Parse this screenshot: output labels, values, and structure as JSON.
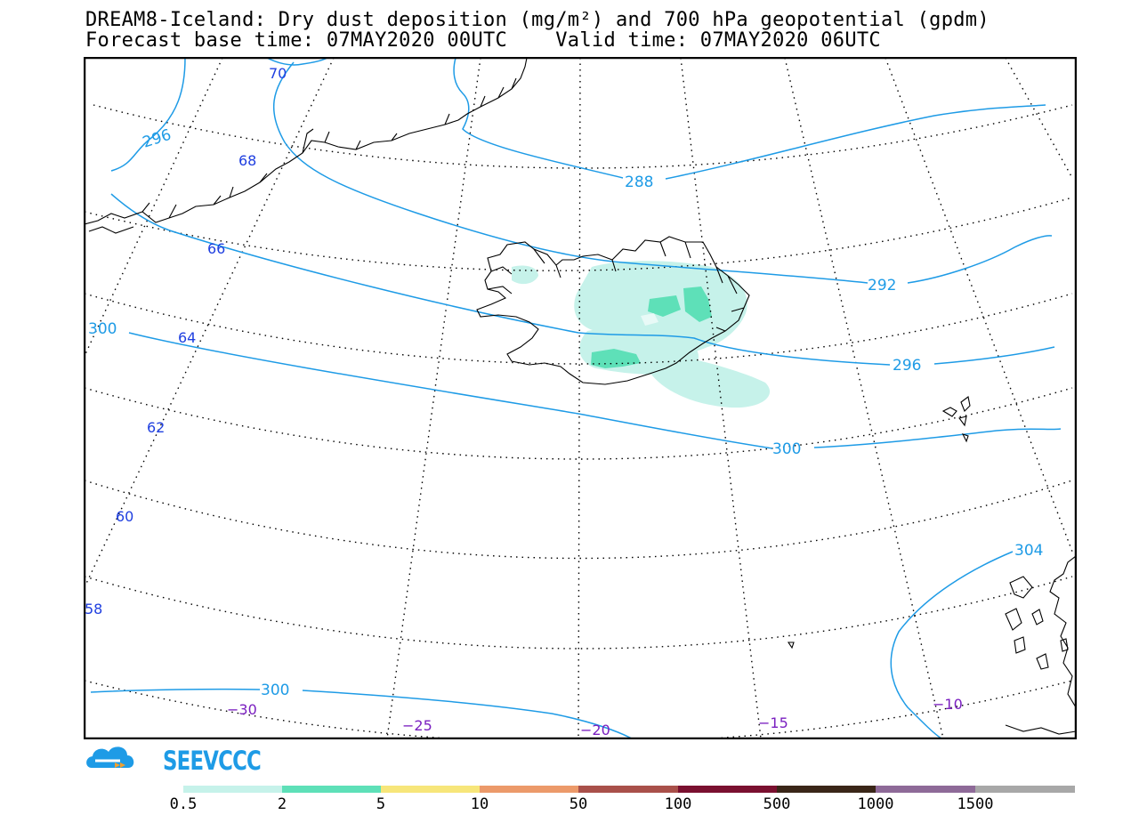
{
  "header": {
    "title_line1": "DREAM8-Iceland: Dry dust deposition (mg/m²) and 700 hPa geopotential (gpdm)",
    "title_line2": "Forecast base time: 07MAY2020 00UTC    Valid time: 07MAY2020 06UTC"
  },
  "map": {
    "latitude_labels": [
      "70",
      "68",
      "66",
      "64",
      "62",
      "60",
      "58"
    ],
    "longitude_labels": [
      "-30",
      "-25",
      "-20",
      "-15",
      "-10"
    ],
    "contour_labels": [
      "296",
      "288",
      "292",
      "300",
      "296",
      "300",
      "304",
      "300"
    ],
    "colors": {
      "contour": "#1e9be6",
      "lat_label": "#1f3fe0",
      "lon_label": "#7a1fc0",
      "coast": "#000000"
    }
  },
  "logo": {
    "text": "SEEVCCC",
    "color": "#1e9be6",
    "accent": "#f0a030"
  },
  "legend": {
    "labels": [
      "0.5",
      "2",
      "5",
      "10",
      "50",
      "100",
      "500",
      "1000",
      "1500"
    ],
    "colors": [
      "#c6f2ea",
      "#5ee0b8",
      "#f7e67a",
      "#ec9a6a",
      "#a9504a",
      "#7a1030",
      "#3a2618",
      "#8e6a98",
      "#a8a8a8"
    ]
  }
}
